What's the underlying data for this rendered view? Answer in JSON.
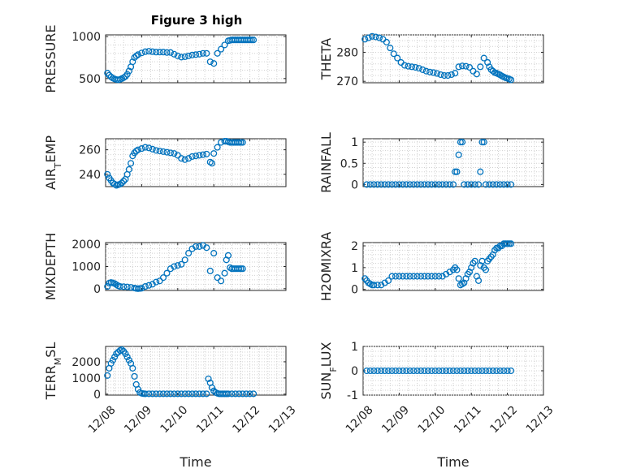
{
  "figure": {
    "title": "Figure 3 high",
    "time_ticks": [
      "12/08",
      "12/09",
      "12/10",
      "12/11",
      "12/12",
      "12/13"
    ],
    "xlabel": "Time",
    "marker_color": "#0072BD"
  },
  "chart_data": [
    {
      "type": "scatter",
      "name": "pressure",
      "title": "Figure 3 high",
      "ylabel_main": "PRESSURE",
      "ylabel_sub": "",
      "ylabel_rest": "",
      "xlim": [
        0,
        5
      ],
      "ylim": [
        450,
        1020
      ],
      "yticks": [
        500,
        1000
      ],
      "xticks_labeled": false,
      "x": [
        0.05,
        0.1,
        0.15,
        0.2,
        0.25,
        0.3,
        0.35,
        0.4,
        0.45,
        0.5,
        0.55,
        0.6,
        0.65,
        0.7,
        0.75,
        0.8,
        0.85,
        0.9,
        1.0,
        1.1,
        1.2,
        1.3,
        1.4,
        1.5,
        1.6,
        1.7,
        1.8,
        1.9,
        2.0,
        2.1,
        2.2,
        2.3,
        2.4,
        2.5,
        2.6,
        2.7,
        2.8,
        2.9,
        3.0,
        3.1,
        3.2,
        3.3,
        3.4,
        3.45,
        3.5,
        3.55,
        3.6,
        3.65,
        3.7,
        3.75,
        3.8,
        3.85,
        3.9,
        3.95,
        4.0,
        4.05,
        4.1
      ],
      "y": [
        565,
        540,
        520,
        505,
        495,
        488,
        485,
        490,
        500,
        510,
        525,
        550,
        590,
        640,
        700,
        750,
        770,
        785,
        805,
        820,
        825,
        820,
        815,
        815,
        815,
        810,
        810,
        790,
        770,
        755,
        760,
        770,
        780,
        785,
        790,
        800,
        800,
        700,
        680,
        800,
        850,
        900,
        950,
        955,
        960,
        960,
        960,
        960,
        960,
        960,
        960,
        960,
        960,
        960,
        960,
        960,
        960
      ]
    },
    {
      "type": "scatter",
      "name": "theta",
      "ylabel_main": "THETA",
      "ylabel_sub": "",
      "ylabel_rest": "",
      "xlim": [
        0,
        5
      ],
      "ylim": [
        269.5,
        286
      ],
      "yticks": [
        270,
        280
      ],
      "xticks_labeled": false,
      "x": [
        0.05,
        0.15,
        0.25,
        0.35,
        0.45,
        0.55,
        0.65,
        0.75,
        0.85,
        0.95,
        1.05,
        1.15,
        1.25,
        1.35,
        1.45,
        1.55,
        1.65,
        1.75,
        1.85,
        1.95,
        2.05,
        2.15,
        2.25,
        2.35,
        2.45,
        2.55,
        2.65,
        2.75,
        2.85,
        2.95,
        3.05,
        3.15,
        3.25,
        3.35,
        3.45,
        3.5,
        3.55,
        3.6,
        3.65,
        3.7,
        3.75,
        3.8,
        3.85,
        3.9,
        3.95,
        4.0,
        4.05,
        4.1
      ],
      "y": [
        284.5,
        285,
        285.5,
        285.3,
        285,
        284.5,
        283.5,
        281.5,
        279.5,
        278,
        276.5,
        275.5,
        275.2,
        275,
        274.8,
        274.5,
        274,
        273.5,
        273.2,
        273,
        272.7,
        272.3,
        272,
        272,
        272.3,
        272.8,
        275,
        275.3,
        275.2,
        274.8,
        273.5,
        272.5,
        275,
        278,
        276.5,
        275,
        274,
        273.5,
        273,
        272.8,
        272.5,
        272.2,
        271.8,
        271.5,
        271.2,
        271,
        270.8,
        270.5
      ]
    },
    {
      "type": "scatter",
      "name": "air_temp",
      "ylabel_main": "AIR",
      "ylabel_sub": "T",
      "ylabel_rest": "EMP",
      "xlim": [
        0,
        5
      ],
      "ylim": [
        230,
        269
      ],
      "yticks": [
        240,
        260
      ],
      "xticks_labeled": false,
      "x": [
        0.05,
        0.1,
        0.15,
        0.2,
        0.25,
        0.3,
        0.35,
        0.4,
        0.45,
        0.5,
        0.55,
        0.6,
        0.65,
        0.7,
        0.75,
        0.8,
        0.85,
        0.9,
        1.0,
        1.1,
        1.2,
        1.3,
        1.4,
        1.5,
        1.6,
        1.7,
        1.8,
        1.9,
        2.0,
        2.1,
        2.2,
        2.3,
        2.4,
        2.5,
        2.6,
        2.7,
        2.8,
        2.9,
        2.95,
        3.0,
        3.1,
        3.2,
        3.3,
        3.35,
        3.4,
        3.45,
        3.5,
        3.55,
        3.6,
        3.65,
        3.7,
        3.75,
        3.8
      ],
      "y": [
        240,
        237,
        235,
        233,
        232,
        231,
        231.5,
        232,
        233,
        234.5,
        236,
        240,
        244,
        249,
        255,
        257.5,
        259,
        260,
        261,
        262,
        261.5,
        260.5,
        259.5,
        259,
        258.5,
        258,
        257.5,
        257,
        255.5,
        253,
        252,
        253,
        254.5,
        255,
        255.5,
        256,
        256.5,
        250,
        249,
        257,
        262,
        266,
        267,
        267,
        266.5,
        266,
        266,
        266,
        266,
        266,
        266,
        266,
        266
      ]
    },
    {
      "type": "scatter",
      "name": "rainfall",
      "ylabel_main": "RAINFALL",
      "ylabel_sub": "",
      "ylabel_rest": "",
      "xlim": [
        0,
        5
      ],
      "ylim": [
        -0.05,
        1.08
      ],
      "yticks": [
        0,
        0.5,
        1
      ],
      "ytick_labels": [
        "0",
        "0.5",
        "1"
      ],
      "xticks_labeled": false,
      "x": [
        0.1,
        0.2,
        0.3,
        0.4,
        0.5,
        0.6,
        0.7,
        0.8,
        0.9,
        1.0,
        1.1,
        1.2,
        1.3,
        1.4,
        1.5,
        1.6,
        1.7,
        1.8,
        1.9,
        2.0,
        2.1,
        2.2,
        2.3,
        2.4,
        2.5,
        2.55,
        2.6,
        2.65,
        2.7,
        2.75,
        2.8,
        2.9,
        3.0,
        3.1,
        3.2,
        3.25,
        3.3,
        3.35,
        3.4,
        3.5,
        3.6,
        3.7,
        3.8,
        3.9,
        4.0,
        4.1
      ],
      "y": [
        0,
        0,
        0,
        0,
        0,
        0,
        0,
        0,
        0,
        0,
        0,
        0,
        0,
        0,
        0,
        0,
        0,
        0,
        0,
        0,
        0,
        0,
        0,
        0,
        0,
        0.3,
        0.3,
        0.7,
        1,
        1,
        0,
        0,
        0,
        0,
        0,
        0.3,
        1,
        1,
        0,
        0,
        0,
        0,
        0,
        0,
        0,
        0
      ]
    },
    {
      "type": "scatter",
      "name": "mixdepth",
      "ylabel_main": "MIXDEPTH",
      "ylabel_sub": "",
      "ylabel_rest": "",
      "xlim": [
        0,
        5
      ],
      "ylim": [
        -80,
        2080
      ],
      "yticks": [
        0,
        1000,
        2000
      ],
      "xticks_labeled": false,
      "x": [
        0.05,
        0.1,
        0.15,
        0.2,
        0.25,
        0.3,
        0.35,
        0.4,
        0.5,
        0.6,
        0.7,
        0.8,
        0.85,
        0.9,
        0.95,
        1.0,
        1.1,
        1.2,
        1.3,
        1.4,
        1.5,
        1.6,
        1.7,
        1.8,
        1.9,
        2.0,
        2.1,
        2.2,
        2.3,
        2.4,
        2.5,
        2.6,
        2.7,
        2.8,
        2.9,
        3.0,
        3.1,
        3.2,
        3.3,
        3.35,
        3.4,
        3.45,
        3.5,
        3.55,
        3.6,
        3.65,
        3.7,
        3.75,
        3.8
      ],
      "y": [
        100,
        250,
        280,
        260,
        230,
        180,
        130,
        100,
        90,
        80,
        60,
        30,
        10,
        0,
        10,
        20,
        100,
        150,
        200,
        300,
        350,
        500,
        700,
        900,
        1000,
        1050,
        1100,
        1300,
        1600,
        1800,
        1900,
        1900,
        1950,
        1850,
        800,
        1600,
        500,
        350,
        700,
        1300,
        1500,
        950,
        900,
        900,
        900,
        900,
        900,
        900,
        900
      ]
    },
    {
      "type": "scatter",
      "name": "h2omixra",
      "ylabel_main": "H2OMIXRA",
      "ylabel_sub": "",
      "ylabel_rest": "",
      "xlim": [
        0,
        5
      ],
      "ylim": [
        -0.05,
        2.15
      ],
      "yticks": [
        0,
        1,
        2
      ],
      "xticks_labeled": false,
      "x": [
        0.05,
        0.1,
        0.15,
        0.2,
        0.25,
        0.3,
        0.4,
        0.5,
        0.6,
        0.7,
        0.8,
        0.9,
        1.0,
        1.1,
        1.2,
        1.3,
        1.4,
        1.5,
        1.6,
        1.7,
        1.8,
        1.9,
        2.0,
        2.1,
        2.2,
        2.3,
        2.4,
        2.5,
        2.55,
        2.6,
        2.65,
        2.7,
        2.75,
        2.8,
        2.85,
        2.9,
        2.95,
        3.0,
        3.05,
        3.1,
        3.15,
        3.2,
        3.25,
        3.3,
        3.35,
        3.4,
        3.45,
        3.5,
        3.55,
        3.6,
        3.65,
        3.7,
        3.75,
        3.8,
        3.85,
        3.9,
        3.95,
        4.0,
        4.05,
        4.1
      ],
      "y": [
        0.5,
        0.4,
        0.3,
        0.25,
        0.2,
        0.2,
        0.2,
        0.2,
        0.3,
        0.4,
        0.6,
        0.6,
        0.6,
        0.6,
        0.6,
        0.6,
        0.6,
        0.6,
        0.6,
        0.6,
        0.6,
        0.6,
        0.6,
        0.6,
        0.6,
        0.7,
        0.8,
        0.9,
        1.0,
        0.9,
        0.5,
        0.2,
        0.25,
        0.3,
        0.5,
        0.7,
        0.8,
        1.0,
        1.2,
        1.3,
        0.6,
        0.4,
        1.1,
        1.3,
        1.0,
        0.9,
        1.3,
        1.4,
        1.5,
        1.6,
        1.8,
        1.9,
        1.9,
        2.0,
        2.0,
        2.1,
        2.1,
        2.1,
        2.1,
        2.1
      ]
    },
    {
      "type": "scatter",
      "name": "terr_msl",
      "ylabel_main": "TERR",
      "ylabel_sub": "M",
      "ylabel_rest": "SL",
      "xlim": [
        0,
        5
      ],
      "ylim": [
        -60,
        2950
      ],
      "yticks": [
        0,
        1000,
        2000
      ],
      "xticks_labeled": true,
      "x": [
        0.05,
        0.1,
        0.15,
        0.2,
        0.25,
        0.3,
        0.35,
        0.4,
        0.45,
        0.5,
        0.55,
        0.6,
        0.65,
        0.7,
        0.75,
        0.8,
        0.85,
        0.9,
        0.95,
        1.0,
        1.05,
        1.1,
        1.2,
        1.3,
        1.4,
        1.5,
        1.6,
        1.7,
        1.8,
        1.9,
        2.0,
        2.1,
        2.2,
        2.3,
        2.4,
        2.5,
        2.6,
        2.7,
        2.8,
        2.85,
        2.9,
        2.95,
        3.0,
        3.05,
        3.1,
        3.15,
        3.2,
        3.25,
        3.3,
        3.35,
        3.4,
        3.5,
        3.6,
        3.7,
        3.8,
        3.9,
        4.0,
        4.1
      ],
      "y": [
        1150,
        1600,
        1900,
        2100,
        2300,
        2500,
        2600,
        2700,
        2750,
        2650,
        2500,
        2300,
        2100,
        1900,
        1600,
        1100,
        600,
        300,
        100,
        50,
        30,
        20,
        20,
        20,
        20,
        20,
        20,
        20,
        20,
        20,
        20,
        20,
        20,
        20,
        20,
        20,
        20,
        20,
        20,
        950,
        700,
        400,
        200,
        100,
        50,
        20,
        20,
        20,
        20,
        20,
        20,
        20,
        20,
        20,
        20,
        20,
        20,
        20
      ]
    },
    {
      "type": "scatter",
      "name": "sun_flux",
      "ylabel_main": "SUN",
      "ylabel_sub": "F",
      "ylabel_rest": "LUX",
      "xlim": [
        0,
        5
      ],
      "ylim": [
        -1,
        1
      ],
      "yticks": [
        -1,
        0,
        1
      ],
      "xticks_labeled": true,
      "x": [
        0.1,
        0.2,
        0.3,
        0.4,
        0.5,
        0.6,
        0.7,
        0.8,
        0.9,
        1.0,
        1.1,
        1.2,
        1.3,
        1.4,
        1.5,
        1.6,
        1.7,
        1.8,
        1.9,
        2.0,
        2.1,
        2.2,
        2.3,
        2.4,
        2.5,
        2.6,
        2.7,
        2.8,
        2.9,
        3.0,
        3.1,
        3.2,
        3.3,
        3.4,
        3.5,
        3.6,
        3.7,
        3.8,
        3.9,
        4.0,
        4.1
      ],
      "y": [
        0,
        0,
        0,
        0,
        0,
        0,
        0,
        0,
        0,
        0,
        0,
        0,
        0,
        0,
        0,
        0,
        0,
        0,
        0,
        0,
        0,
        0,
        0,
        0,
        0,
        0,
        0,
        0,
        0,
        0,
        0,
        0,
        0,
        0,
        0,
        0,
        0,
        0,
        0,
        0,
        0
      ]
    }
  ]
}
